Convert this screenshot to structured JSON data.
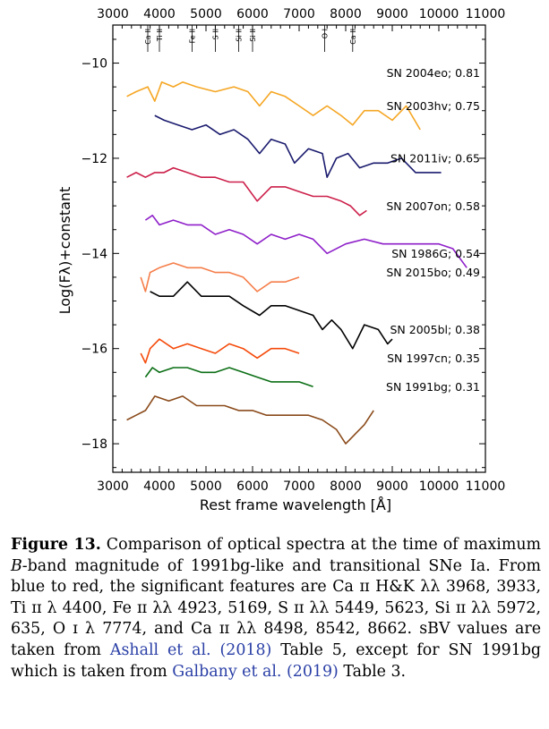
{
  "caption": {
    "label": "Figure 13.",
    "text_1": "Comparison of optical spectra at the time of maximum ",
    "band": "B",
    "text_2": "-band magnitude of 1991bg-like and transitional SNe Ia. From blue to red, the significant features are Ca ɪɪ H&K λλ 3968, 3933, Ti ɪɪ λ 4400, Fe ɪɪ λλ 4923, 5169, S ɪɪ λλ 5449, 5623, Si ɪɪ λλ 5972, 635, O ɪ λ 7774, and Ca ɪɪ λλ 8498, 8542, 8662. ",
    "sbv": "sBV",
    "text_3": " values are taken from ",
    "ref1": "Ashall et al.",
    "ref1_year": "(2018)",
    "text_4": " Table 5, except for SN 1991bg which is taken from ",
    "ref2": "Galbany et al.",
    "ref2_year": "(2019)",
    "text_5": " Table 3."
  },
  "chart_data": {
    "type": "line",
    "xlabel": "Rest frame wavelength [Å]",
    "ylabel": "Log(Fλ)+constant",
    "xlim": [
      3000,
      11000
    ],
    "ylim": [
      -18.6,
      -9.2
    ],
    "x_ticks": [
      3000,
      4000,
      5000,
      6000,
      7000,
      8000,
      9000,
      10000,
      11000
    ],
    "y_ticks": [
      -10,
      -12,
      -14,
      -16,
      -18
    ],
    "x_tick_labels": [
      "3000",
      "4000",
      "5000",
      "6000",
      "7000",
      "8000",
      "9000",
      "10000",
      "11000"
    ],
    "y_tick_labels": [
      "−10",
      "−12",
      "−14",
      "−16",
      "−18"
    ],
    "grid": false,
    "line_markers": [
      {
        "label": "Ca II",
        "wavelength": 3750
      },
      {
        "label": "Ti II",
        "wavelength": 4000
      },
      {
        "label": "Fe II",
        "wavelength": 4700
      },
      {
        "label": "S II",
        "wavelength": 5200
      },
      {
        "label": "Si II",
        "wavelength": 5700
      },
      {
        "label": "Si II",
        "wavelength": 6000
      },
      {
        "label": "O I",
        "wavelength": 7550
      },
      {
        "label": "Ca II",
        "wavelength": 8150
      }
    ],
    "series": [
      {
        "name": "SN 2004eo; 0.81",
        "color": "#f5a623",
        "x": [
          3300,
          3500,
          3750,
          3900,
          4050,
          4300,
          4500,
          4800,
          5200,
          5600,
          5900,
          6150,
          6400,
          6700,
          7000,
          7300,
          7600,
          7900,
          8150,
          8400,
          8700,
          9000,
          9300,
          9600
        ],
        "y": [
          -10.7,
          -10.6,
          -10.5,
          -10.8,
          -10.4,
          -10.5,
          -10.4,
          -10.5,
          -10.6,
          -10.5,
          -10.6,
          -10.9,
          -10.6,
          -10.7,
          -10.9,
          -11.1,
          -10.9,
          -11.1,
          -11.3,
          -11.0,
          -11.0,
          -11.2,
          -10.9,
          -11.4
        ]
      },
      {
        "name": "SN 2003hv; 0.75",
        "color": "#1a1a6e",
        "x": [
          3900,
          4100,
          4400,
          4700,
          5000,
          5300,
          5600,
          5900,
          6150,
          6400,
          6700,
          6900,
          7200,
          7500,
          7600,
          7800,
          8050,
          8300,
          8600,
          8900,
          9200,
          9500,
          9800,
          10050
        ],
        "y": [
          -11.1,
          -11.2,
          -11.3,
          -11.4,
          -11.3,
          -11.5,
          -11.4,
          -11.6,
          -11.9,
          -11.6,
          -11.7,
          -12.1,
          -11.8,
          -11.9,
          -12.4,
          -12.0,
          -11.9,
          -12.2,
          -12.1,
          -12.1,
          -12.0,
          -12.3,
          -12.3,
          -12.3
        ]
      },
      {
        "name": "SN 2011iv; 0.65",
        "color": "#cc1f4a",
        "x": [
          3300,
          3500,
          3700,
          3900,
          4100,
          4300,
          4600,
          4900,
          5200,
          5500,
          5800,
          6100,
          6400,
          6700,
          7000,
          7300,
          7600,
          7900,
          8100,
          8300,
          8450
        ],
        "y": [
          -12.4,
          -12.3,
          -12.4,
          -12.3,
          -12.3,
          -12.2,
          -12.3,
          -12.4,
          -12.4,
          -12.5,
          -12.5,
          -12.9,
          -12.6,
          -12.6,
          -12.7,
          -12.8,
          -12.8,
          -12.9,
          -13.0,
          -13.2,
          -13.1
        ]
      },
      {
        "name": "SN 2007on; 0.58",
        "color": "#8e1fc9",
        "x": [
          3700,
          3850,
          4000,
          4300,
          4600,
          4900,
          5200,
          5500,
          5800,
          6100,
          6400,
          6700,
          7000,
          7300,
          7600,
          8000,
          8400,
          8800,
          9200,
          9600,
          10000,
          10300,
          10600
        ],
        "y": [
          -13.3,
          -13.2,
          -13.4,
          -13.3,
          -13.4,
          -13.4,
          -13.6,
          -13.5,
          -13.6,
          -13.8,
          -13.6,
          -13.7,
          -13.6,
          -13.7,
          -14.0,
          -13.8,
          -13.7,
          -13.8,
          -13.8,
          -13.8,
          -13.8,
          -13.9,
          -14.3
        ]
      },
      {
        "name": "SN 1986G; 0.54",
        "color": "#f57e4a",
        "x": [
          3600,
          3700,
          3800,
          4000,
          4300,
          4600,
          4900,
          5200,
          5500,
          5800,
          6100,
          6400,
          6700,
          7000
        ],
        "y": [
          -14.5,
          -14.8,
          -14.4,
          -14.3,
          -14.2,
          -14.3,
          -14.3,
          -14.4,
          -14.4,
          -14.5,
          -14.8,
          -14.6,
          -14.6,
          -14.5
        ]
      },
      {
        "name": "SN 2015bo; 0.49",
        "color": "#000000",
        "x": [
          3800,
          4000,
          4300,
          4600,
          4900,
          5200,
          5500,
          5800,
          6150,
          6400,
          6700,
          7000,
          7300,
          7500,
          7700,
          7900,
          8150,
          8400,
          8700,
          8900,
          9000
        ],
        "y": [
          -14.8,
          -14.9,
          -14.9,
          -14.6,
          -14.9,
          -14.9,
          -14.9,
          -15.1,
          -15.3,
          -15.1,
          -15.1,
          -15.2,
          -15.3,
          -15.6,
          -15.4,
          -15.6,
          -16.0,
          -15.5,
          -15.6,
          -15.9,
          -15.8
        ]
      },
      {
        "name": "SN 2005bl; 0.38",
        "color": "#f54a0a",
        "x": [
          3600,
          3700,
          3800,
          4000,
          4300,
          4600,
          4900,
          5200,
          5500,
          5800,
          6100,
          6400,
          6700,
          7000
        ],
        "y": [
          -16.1,
          -16.3,
          -16.0,
          -15.8,
          -16.0,
          -15.9,
          -16.0,
          -16.1,
          -15.9,
          -16.0,
          -16.2,
          -16.0,
          -16.0,
          -16.1
        ]
      },
      {
        "name": "SN 1997cn; 0.35",
        "color": "#0a6e14",
        "x": [
          3700,
          3850,
          4000,
          4300,
          4600,
          4900,
          5200,
          5500,
          5800,
          6100,
          6400,
          6700,
          7000,
          7300
        ],
        "y": [
          -16.6,
          -16.4,
          -16.5,
          -16.4,
          -16.4,
          -16.5,
          -16.5,
          -16.4,
          -16.5,
          -16.6,
          -16.7,
          -16.7,
          -16.7,
          -16.8
        ]
      },
      {
        "name": "SN 1991bg; 0.31",
        "color": "#8a4a1a",
        "x": [
          3300,
          3500,
          3700,
          3900,
          4200,
          4500,
          4800,
          5100,
          5400,
          5700,
          6000,
          6300,
          6600,
          6900,
          7200,
          7500,
          7800,
          8000,
          8100,
          8200,
          8400,
          8600
        ],
        "y": [
          -17.5,
          -17.4,
          -17.3,
          -17.0,
          -17.1,
          -17.0,
          -17.2,
          -17.2,
          -17.2,
          -17.3,
          -17.3,
          -17.4,
          -17.4,
          -17.4,
          -17.4,
          -17.5,
          -17.7,
          -18.0,
          -17.9,
          -17.8,
          -17.6,
          -17.3
        ]
      }
    ]
  }
}
